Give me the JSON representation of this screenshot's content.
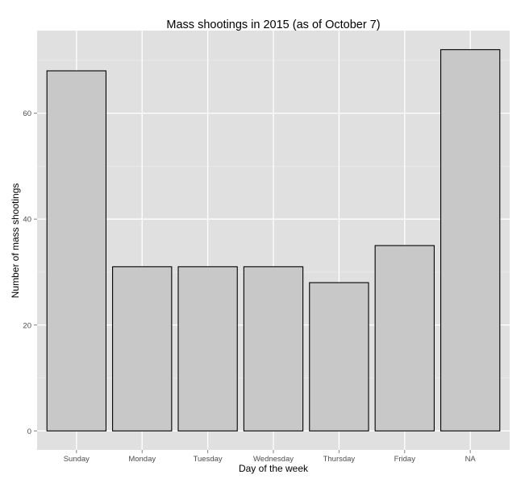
{
  "chart_data": {
    "type": "bar",
    "title": "Mass shootings in 2015 (as of October 7)",
    "xlabel": "Day of the week",
    "ylabel": "Number of mass shootings",
    "categories": [
      "Sunday",
      "Monday",
      "Tuesday",
      "Wednesday",
      "Thursday",
      "Friday",
      "NA"
    ],
    "values": [
      68,
      31,
      31,
      31,
      28,
      35,
      72
    ],
    "ylim": [
      -3.6,
      75.6
    ],
    "yticks": [
      0,
      20,
      40,
      60
    ],
    "ytick_labels": [
      "0",
      "20",
      "40",
      "60"
    ],
    "grid": true,
    "legend": "none",
    "colors": {
      "panel_background": "#e0e0e0",
      "grid_major": "#ffffff",
      "grid_minor": "#ececec",
      "bar_fill": "#c8c8c8",
      "bar_stroke": "#000000",
      "tick_label": "#4d4d4d",
      "text": "#000000"
    }
  }
}
